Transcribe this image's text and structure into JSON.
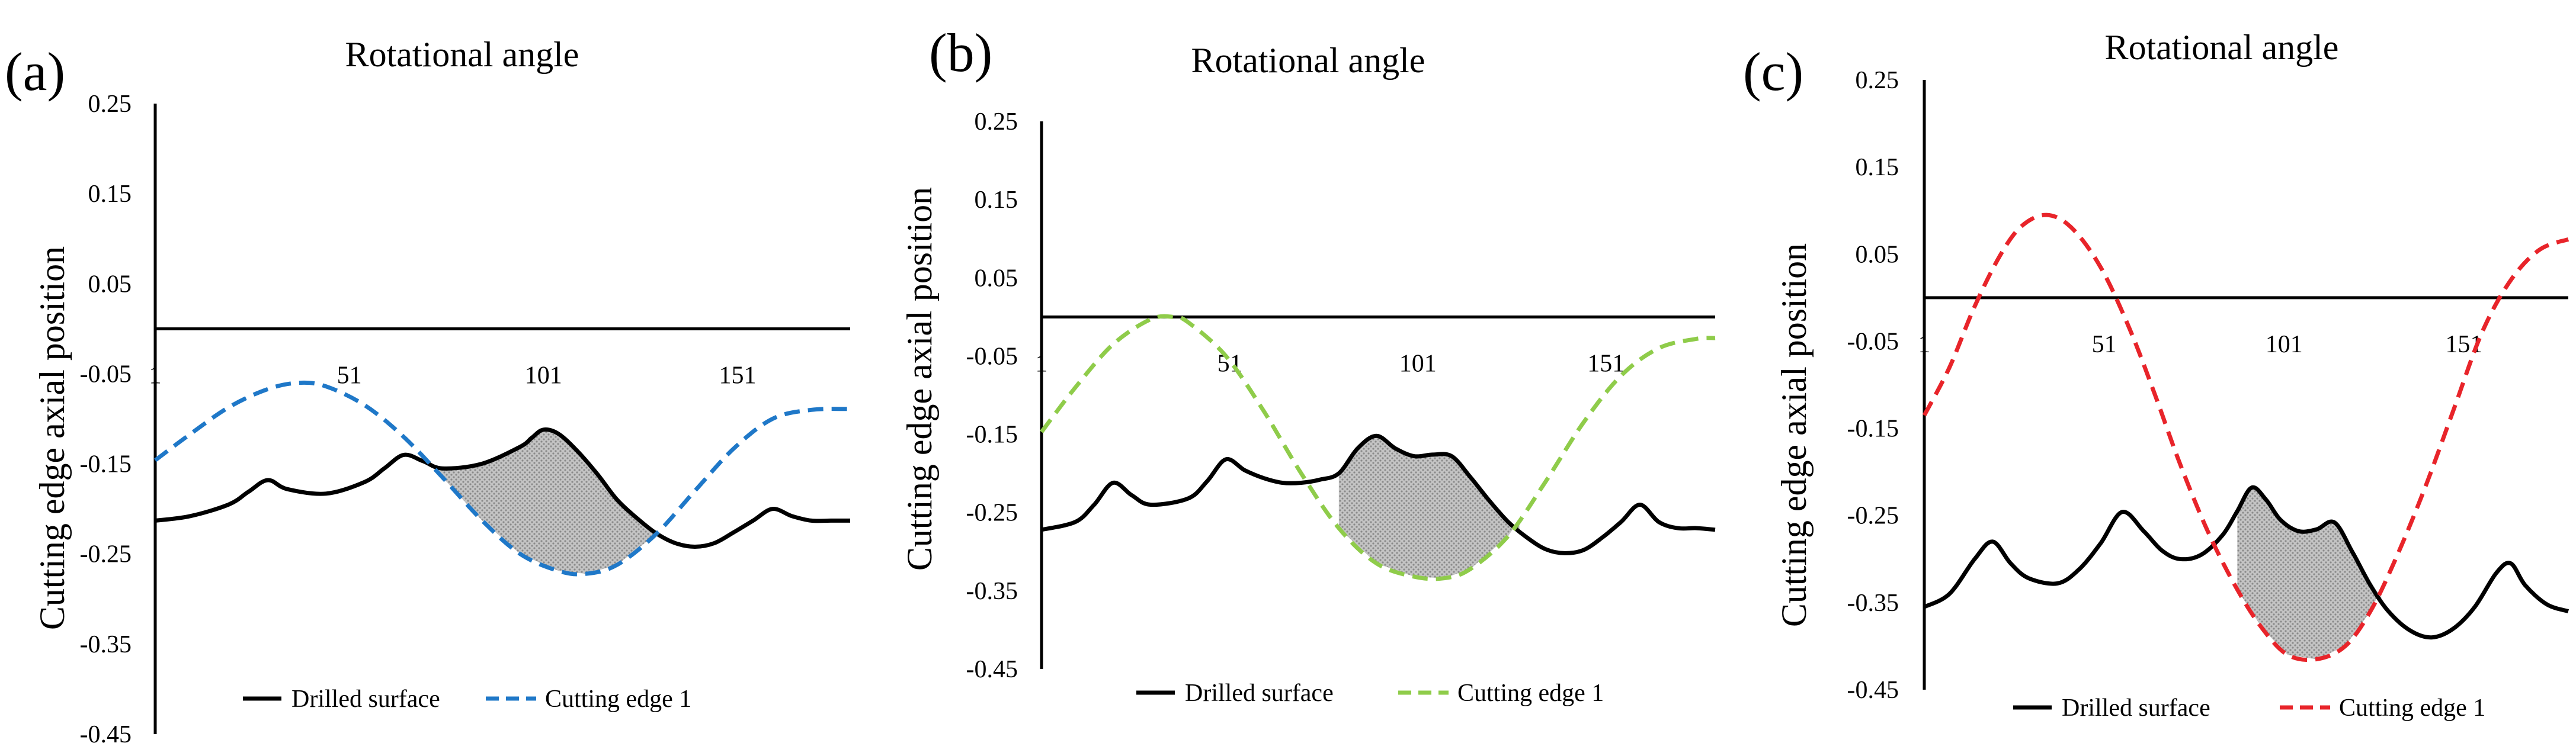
{
  "figure": {
    "description_labels": [
      "(a)",
      "(b)",
      "(c)"
    ]
  },
  "chart_data": [
    {
      "type": "line",
      "panel_label": "(a)",
      "title": "Rotational angle",
      "xlabel": "Rotational angle",
      "ylabel": "Cutting edge axial position",
      "xlim": [
        1,
        180
      ],
      "ylim": [
        -0.45,
        0.25
      ],
      "x_ticks": [
        "1",
        "51",
        "101",
        "151"
      ],
      "y_ticks": [
        "0.25",
        "0.15",
        "0.05",
        "-0.05",
        "-0.15",
        "-0.25",
        "-0.35",
        "-0.45"
      ],
      "legend": [
        "Drilled surface",
        "Cutting edge 1"
      ],
      "cut_color": "#1f78c8",
      "series": [
        {
          "name": "Drilled surface",
          "x": [
            1,
            10,
            20,
            25,
            30,
            35,
            45,
            55,
            60,
            65,
            70,
            75,
            85,
            95,
            98,
            101,
            105,
            110,
            115,
            120,
            125,
            130,
            135,
            140,
            145,
            150,
            155,
            160,
            165,
            170,
            175,
            180
          ],
          "y": [
            -0.213,
            -0.208,
            -0.195,
            -0.181,
            -0.168,
            -0.178,
            -0.183,
            -0.17,
            -0.155,
            -0.14,
            -0.147,
            -0.155,
            -0.15,
            -0.131,
            -0.121,
            -0.112,
            -0.117,
            -0.137,
            -0.162,
            -0.19,
            -0.21,
            -0.227,
            -0.238,
            -0.242,
            -0.238,
            -0.226,
            -0.213,
            -0.2,
            -0.208,
            -0.213,
            -0.213,
            -0.213
          ]
        },
        {
          "name": "Cutting edge 1",
          "style": "dashed",
          "x": [
            1,
            10,
            20,
            30,
            38,
            45,
            55,
            65,
            75,
            85,
            95,
            105,
            112,
            120,
            130,
            140,
            150,
            160,
            170,
            180
          ],
          "y": [
            -0.146,
            -0.117,
            -0.087,
            -0.067,
            -0.06,
            -0.064,
            -0.085,
            -0.12,
            -0.165,
            -0.212,
            -0.25,
            -0.269,
            -0.272,
            -0.262,
            -0.228,
            -0.18,
            -0.133,
            -0.1,
            -0.09,
            -0.089
          ]
        }
      ],
      "shaded_region": {
        "x_start": 72,
        "x_end": 130
      }
    },
    {
      "type": "line",
      "panel_label": "(b)",
      "title": "Rotational angle",
      "xlabel": "Rotational angle",
      "ylabel": "Cutting edge axial position",
      "xlim": [
        1,
        180
      ],
      "ylim": [
        -0.45,
        0.25
      ],
      "x_ticks": [
        "1",
        "51",
        "101",
        "151"
      ],
      "y_ticks": [
        "0.25",
        "0.15",
        "0.05",
        "-0.05",
        "-0.15",
        "-0.25",
        "-0.35",
        "-0.45"
      ],
      "legend": [
        "Drilled surface",
        "Cutting edge 1"
      ],
      "cut_color": "#8fcc4a",
      "series": [
        {
          "name": "Drilled surface",
          "x": [
            1,
            10,
            15,
            20,
            25,
            30,
            40,
            45,
            50,
            55,
            60,
            65,
            70,
            75,
            80,
            85,
            90,
            95,
            100,
            105,
            110,
            115,
            120,
            125,
            130,
            135,
            140,
            145,
            150,
            155,
            160,
            165,
            170,
            175,
            180
          ],
          "y": [
            -0.272,
            -0.262,
            -0.24,
            -0.212,
            -0.228,
            -0.24,
            -0.232,
            -0.21,
            -0.182,
            -0.196,
            -0.206,
            -0.212,
            -0.212,
            -0.208,
            -0.2,
            -0.168,
            -0.152,
            -0.168,
            -0.178,
            -0.176,
            -0.178,
            -0.205,
            -0.235,
            -0.262,
            -0.282,
            -0.297,
            -0.302,
            -0.298,
            -0.282,
            -0.262,
            -0.24,
            -0.262,
            -0.27,
            -0.27,
            -0.272
          ]
        },
        {
          "name": "Cutting edge 1",
          "style": "dashed",
          "x": [
            1,
            10,
            20,
            30,
            36,
            40,
            50,
            60,
            70,
            80,
            90,
            100,
            108,
            115,
            125,
            135,
            145,
            155,
            165,
            175,
            180
          ],
          "y": [
            -0.147,
            -0.09,
            -0.035,
            -0.003,
            0.0,
            -0.007,
            -0.05,
            -0.12,
            -0.2,
            -0.27,
            -0.315,
            -0.332,
            -0.334,
            -0.322,
            -0.28,
            -0.21,
            -0.135,
            -0.075,
            -0.04,
            -0.028,
            -0.027
          ]
        }
      ],
      "shaded_region": {
        "x_start": 80,
        "x_end": 128
      }
    },
    {
      "type": "line",
      "panel_label": "(c)",
      "title": "Rotational angle",
      "xlabel": "Rotational angle",
      "ylabel": "Cutting edge axial position",
      "xlim": [
        1,
        180
      ],
      "ylim": [
        -0.45,
        0.25
      ],
      "x_ticks": [
        "1",
        "51",
        "101",
        "151"
      ],
      "y_ticks": [
        "0.25",
        "0.15",
        "0.05",
        "-0.05",
        "-0.15",
        "-0.25",
        "-0.35",
        "-0.45"
      ],
      "legend": [
        "Drilled surface",
        "Cutting edge 1"
      ],
      "cut_color": "#e8242a",
      "series": [
        {
          "name": "Drilled surface",
          "x": [
            1,
            8,
            15,
            20,
            25,
            30,
            38,
            44,
            50,
            56,
            62,
            67,
            72,
            78,
            84,
            88,
            92,
            96,
            100,
            105,
            110,
            115,
            120,
            125,
            130,
            136,
            142,
            148,
            154,
            160,
            164,
            168,
            174,
            180
          ],
          "y": [
            -0.355,
            -0.34,
            -0.3,
            -0.28,
            -0.305,
            -0.322,
            -0.328,
            -0.312,
            -0.282,
            -0.246,
            -0.268,
            -0.29,
            -0.3,
            -0.295,
            -0.272,
            -0.245,
            -0.218,
            -0.232,
            -0.255,
            -0.268,
            -0.266,
            -0.258,
            -0.292,
            -0.33,
            -0.36,
            -0.382,
            -0.39,
            -0.38,
            -0.355,
            -0.316,
            -0.305,
            -0.33,
            -0.352,
            -0.36
          ]
        },
        {
          "name": "Cutting edge 1",
          "style": "dashed",
          "x": [
            1,
            8,
            15,
            22,
            28,
            35,
            42,
            50,
            58,
            65,
            72,
            80,
            88,
            95,
            102,
            110,
            118,
            125,
            132,
            140,
            148,
            156,
            164,
            172,
            180
          ],
          "y": [
            -0.135,
            -0.08,
            -0.01,
            0.048,
            0.082,
            0.095,
            0.08,
            0.035,
            -0.035,
            -0.11,
            -0.19,
            -0.27,
            -0.335,
            -0.38,
            -0.41,
            -0.415,
            -0.4,
            -0.36,
            -0.3,
            -0.22,
            -0.13,
            -0.04,
            0.02,
            0.055,
            0.067
          ]
        }
      ],
      "shaded_region": {
        "x_start": 88,
        "x_end": 128
      }
    }
  ]
}
